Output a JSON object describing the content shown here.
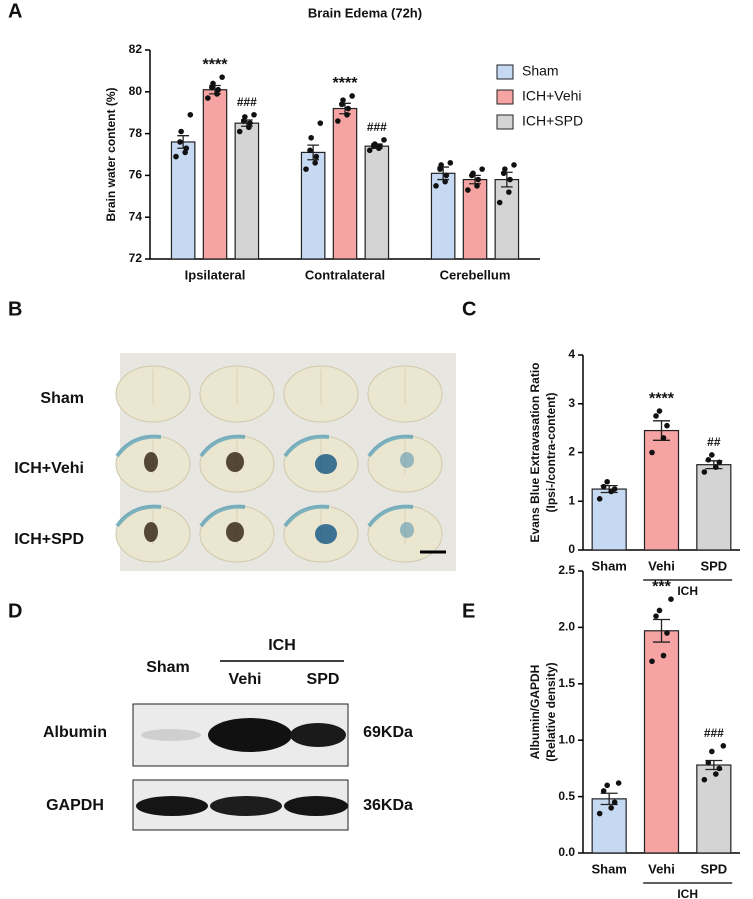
{
  "panel_labels": [
    "A",
    "B",
    "C",
    "D",
    "E"
  ],
  "panel_b": {
    "row_labels": [
      "Sham",
      "ICH+Vehi",
      "ICH+SPD"
    ]
  },
  "panel_d": {
    "sham_label": "Sham",
    "group_label": "ICH",
    "lane_labels": [
      "Vehi",
      "SPD"
    ],
    "bands": [
      {
        "name": "Albumin",
        "size": "69KDa"
      },
      {
        "name": "GAPDH",
        "size": "36KDa"
      }
    ]
  },
  "chart_data": [
    {
      "type": "bar",
      "title": "Brain Edema (72h)",
      "ylabel": [
        "Brain water content (%)"
      ],
      "categories": [
        "Ipsilateral",
        "Contralateral",
        "Cerebellum"
      ],
      "ylim": [
        72,
        82
      ],
      "yticks": [
        72,
        74,
        76,
        78,
        80,
        82
      ],
      "series": [
        {
          "name": "Sham",
          "color": "#c6d9f3",
          "values": [
            77.6,
            77.1,
            76.1
          ],
          "errors": [
            0.3,
            0.35,
            0.3
          ],
          "labels": [
            null,
            null,
            null
          ],
          "points": [
            [
              76.9,
              77.1,
              77.3,
              77.6,
              78.1,
              78.9
            ],
            [
              76.3,
              76.6,
              76.9,
              77.2,
              77.8,
              78.5
            ],
            [
              75.5,
              75.7,
              76.0,
              76.3,
              76.5,
              76.6
            ]
          ]
        },
        {
          "name": "ICH+Vehi",
          "color": "#f5a3a3",
          "values": [
            80.1,
            79.2,
            75.8
          ],
          "errors": [
            0.2,
            0.25,
            0.2
          ],
          "labels": [
            "****",
            "****",
            null
          ],
          "points": [
            [
              79.7,
              79.9,
              80.1,
              80.2,
              80.4,
              80.7
            ],
            [
              78.6,
              78.9,
              79.2,
              79.4,
              79.6,
              79.8
            ],
            [
              75.3,
              75.5,
              75.8,
              76.0,
              76.1,
              76.3
            ]
          ]
        },
        {
          "name": "ICH+SPD",
          "color": "#d4d4d4",
          "values": [
            78.5,
            77.4,
            75.8
          ],
          "errors": [
            0.15,
            0.1,
            0.35
          ],
          "labels": [
            "###",
            "###",
            null
          ],
          "points": [
            [
              78.1,
              78.3,
              78.5,
              78.6,
              78.8,
              78.9
            ],
            [
              77.2,
              77.3,
              77.4,
              77.4,
              77.5,
              77.7
            ],
            [
              74.7,
              75.2,
              75.8,
              76.1,
              76.3,
              76.5
            ]
          ]
        }
      ]
    },
    {
      "type": "bar",
      "ylabel": [
        "Evans Blue Extravasation Ratio",
        "(Ipsi-/contra-content)"
      ],
      "categories": [
        "Sham",
        "Vehi",
        "SPD"
      ],
      "group_label": "ICH",
      "ylim": [
        0,
        4
      ],
      "yticks": [
        0,
        1,
        2,
        3,
        4
      ],
      "colors": [
        "#c6d9f3",
        "#f5a3a3",
        "#d4d4d4"
      ],
      "values": [
        1.25,
        2.45,
        1.75
      ],
      "errors": [
        0.07,
        0.2,
        0.08
      ],
      "labels": [
        null,
        "****",
        "##"
      ],
      "points": [
        [
          1.05,
          1.2,
          1.25,
          1.3,
          1.4
        ],
        [
          2.0,
          2.3,
          2.55,
          2.75,
          2.85
        ],
        [
          1.6,
          1.7,
          1.8,
          1.85,
          1.95
        ]
      ]
    },
    {
      "type": "bar",
      "ylabel": [
        "Albumin/GAPDH",
        "(Relative density)"
      ],
      "categories": [
        "Sham",
        "Vehi",
        "SPD"
      ],
      "group_label": "ICH",
      "ylim": [
        0,
        2.5
      ],
      "yticks": [
        {
          "value": 0,
          "label": "0.0"
        },
        0.5,
        {
          "value": 1,
          "label": "1.0"
        },
        1.5,
        {
          "value": 2,
          "label": "2.0"
        },
        2.5
      ],
      "colors": [
        "#c6d9f3",
        "#f5a3a3",
        "#d4d4d4"
      ],
      "values": [
        0.48,
        1.97,
        0.78
      ],
      "errors": [
        0.05,
        0.1,
        0.04
      ],
      "labels": [
        null,
        "***",
        "###"
      ],
      "points": [
        [
          0.35,
          0.4,
          0.45,
          0.55,
          0.6,
          0.62
        ],
        [
          1.7,
          1.75,
          1.95,
          2.1,
          2.15,
          2.25
        ],
        [
          0.65,
          0.7,
          0.75,
          0.8,
          0.9,
          0.95
        ]
      ]
    }
  ]
}
